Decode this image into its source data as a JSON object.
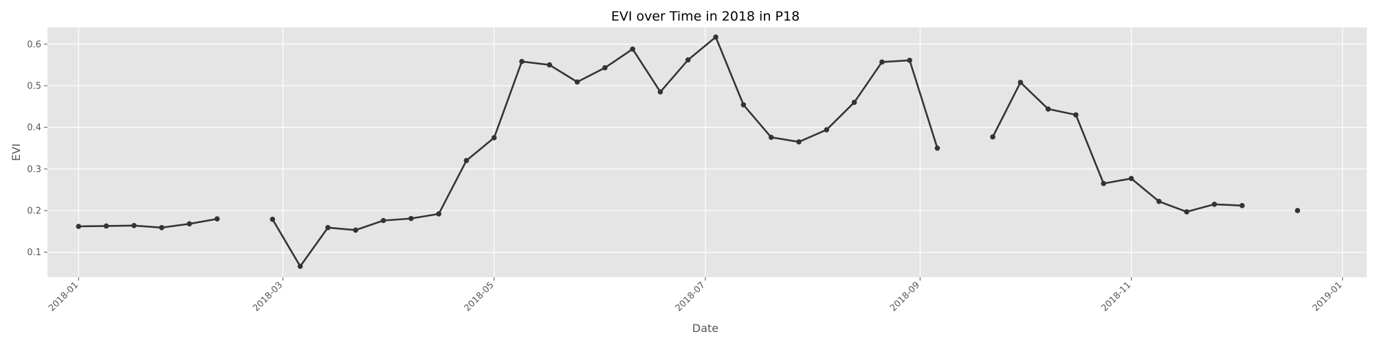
{
  "chart_data": {
    "type": "line",
    "title": "EVI over Time in 2018 in P18",
    "xlabel": "Date",
    "ylabel": "EVI",
    "x_ticks": [
      "2018-01",
      "2018-03",
      "2018-05",
      "2018-07",
      "2018-09",
      "2018-11",
      "2019-01"
    ],
    "y_ticks": [
      "0.1",
      "0.2",
      "0.3",
      "0.4",
      "0.5",
      "0.6"
    ],
    "ylim": [
      0.04,
      0.64
    ],
    "xlim": [
      "2017-12-23",
      "2019-01-08"
    ],
    "grid": true,
    "series_color": "#333333",
    "plot_background": "#e5e5e5",
    "series": [
      {
        "points": [
          {
            "date": "2018-01-01",
            "value": 0.162
          },
          {
            "date": "2018-01-09",
            "value": 0.163
          },
          {
            "date": "2018-01-17",
            "value": 0.164
          },
          {
            "date": "2018-01-25",
            "value": 0.159
          },
          {
            "date": "2018-02-02",
            "value": 0.168
          },
          {
            "date": "2018-02-10",
            "value": 0.18
          },
          {
            "date": "2018-02-18",
            "value": null
          },
          {
            "date": "2018-02-26",
            "value": 0.179
          },
          {
            "date": "2018-03-06",
            "value": 0.066
          },
          {
            "date": "2018-03-14",
            "value": 0.159
          },
          {
            "date": "2018-03-22",
            "value": 0.153
          },
          {
            "date": "2018-03-30",
            "value": 0.176
          },
          {
            "date": "2018-04-07",
            "value": 0.181
          },
          {
            "date": "2018-04-15",
            "value": 0.192
          },
          {
            "date": "2018-04-23",
            "value": 0.32
          },
          {
            "date": "2018-05-01",
            "value": 0.375
          },
          {
            "date": "2018-05-09",
            "value": 0.558
          },
          {
            "date": "2018-05-17",
            "value": 0.55
          },
          {
            "date": "2018-05-25",
            "value": 0.509
          },
          {
            "date": "2018-06-02",
            "value": 0.543
          },
          {
            "date": "2018-06-10",
            "value": 0.588
          },
          {
            "date": "2018-06-18",
            "value": 0.485
          },
          {
            "date": "2018-06-26",
            "value": 0.562
          },
          {
            "date": "2018-07-04",
            "value": 0.617
          },
          {
            "date": "2018-07-12",
            "value": 0.454
          },
          {
            "date": "2018-07-20",
            "value": 0.376
          },
          {
            "date": "2018-07-28",
            "value": 0.365
          },
          {
            "date": "2018-08-05",
            "value": 0.394
          },
          {
            "date": "2018-08-13",
            "value": 0.46
          },
          {
            "date": "2018-08-21",
            "value": 0.557
          },
          {
            "date": "2018-08-29",
            "value": 0.561
          },
          {
            "date": "2018-09-06",
            "value": 0.35
          },
          {
            "date": "2018-09-14",
            "value": null
          },
          {
            "date": "2018-09-22",
            "value": 0.377
          },
          {
            "date": "2018-09-30",
            "value": 0.508
          },
          {
            "date": "2018-10-08",
            "value": 0.444
          },
          {
            "date": "2018-10-16",
            "value": 0.43
          },
          {
            "date": "2018-10-24",
            "value": 0.265
          },
          {
            "date": "2018-11-01",
            "value": 0.277
          },
          {
            "date": "2018-11-09",
            "value": 0.222
          },
          {
            "date": "2018-11-17",
            "value": 0.197
          },
          {
            "date": "2018-11-25",
            "value": 0.215
          },
          {
            "date": "2018-12-03",
            "value": 0.212
          },
          {
            "date": "2018-12-11",
            "value": null
          },
          {
            "date": "2018-12-19",
            "value": 0.2
          }
        ]
      }
    ]
  }
}
